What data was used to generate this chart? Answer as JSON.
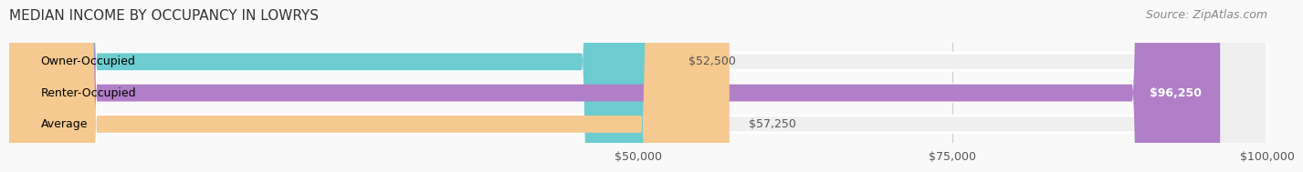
{
  "title": "MEDIAN INCOME BY OCCUPANCY IN LOWRYS",
  "source": "Source: ZipAtlas.com",
  "categories": [
    "Owner-Occupied",
    "Renter-Occupied",
    "Average"
  ],
  "values": [
    52500,
    96250,
    57250
  ],
  "bar_colors": [
    "#6dccd0",
    "#b07fc7",
    "#f5c990"
  ],
  "bar_bg_color": "#efefef",
  "value_labels": [
    "$52,500",
    "$96,250",
    "$57,250"
  ],
  "xmin": 0,
  "xmax": 100000,
  "xticks": [
    50000,
    75000,
    100000
  ],
  "xtick_labels": [
    "$50,000",
    "$75,000",
    "$100,000"
  ],
  "title_fontsize": 11,
  "source_fontsize": 9,
  "label_fontsize": 9,
  "value_fontsize": 9,
  "tick_fontsize": 9,
  "background_color": "#f9f9f9",
  "bar_height": 0.55
}
